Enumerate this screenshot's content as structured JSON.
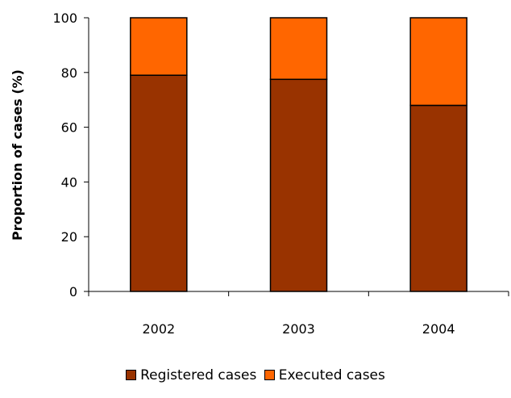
{
  "colors": {
    "registered": "#993300",
    "executed": "#ff6600"
  },
  "chart_data": {
    "type": "bar",
    "stacked": true,
    "categories": [
      "2002",
      "2003",
      "2004"
    ],
    "series": [
      {
        "name": "Registered cases",
        "values": [
          79,
          77.5,
          68
        ]
      },
      {
        "name": "Executed cases",
        "values": [
          21,
          22.5,
          32
        ]
      }
    ],
    "xlabel": "",
    "ylabel": "Proportion of cases (%)",
    "ylim": [
      0,
      100
    ],
    "yticks": [
      "0",
      "20",
      "40",
      "60",
      "80",
      "100"
    ],
    "grid": false,
    "legend": "bottom"
  }
}
